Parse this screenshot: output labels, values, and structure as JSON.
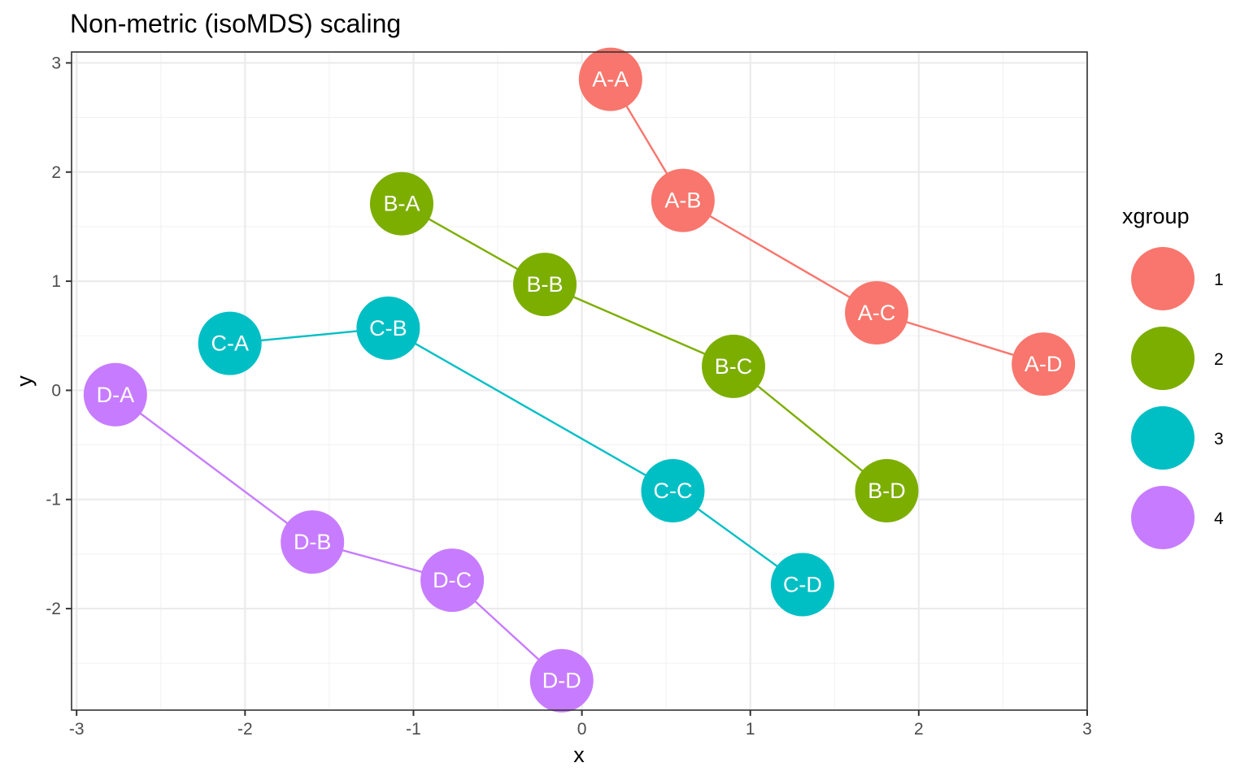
{
  "chart_data": {
    "type": "scatter",
    "title": "Non-metric (isoMDS) scaling",
    "xlabel": "x",
    "ylabel": "y",
    "xlim": [
      -3.03,
      3.0
    ],
    "ylim": [
      -2.93,
      3.1
    ],
    "x_ticks": [
      -3,
      -2,
      -1,
      0,
      1,
      2,
      3
    ],
    "y_ticks": [
      -2,
      -1,
      0,
      1,
      2,
      3
    ],
    "x_tick_labels": [
      "-3",
      "-2",
      "-1",
      "0",
      "1",
      "2",
      "3"
    ],
    "y_tick_labels": [
      "-2",
      "-1",
      "0",
      "1",
      "2",
      "3"
    ],
    "grid": true,
    "legend": {
      "title": "xgroup",
      "position": "right"
    },
    "series": [
      {
        "name": "1",
        "color": "#F8766D",
        "points": [
          {
            "label": "A-A",
            "x": 0.17,
            "y": 2.85
          },
          {
            "label": "A-B",
            "x": 0.6,
            "y": 1.74
          },
          {
            "label": "A-C",
            "x": 1.75,
            "y": 0.71
          },
          {
            "label": "A-D",
            "x": 2.74,
            "y": 0.24
          }
        ]
      },
      {
        "name": "2",
        "color": "#7CAE00",
        "points": [
          {
            "label": "B-A",
            "x": -1.07,
            "y": 1.71
          },
          {
            "label": "B-B",
            "x": -0.22,
            "y": 0.97
          },
          {
            "label": "B-C",
            "x": 0.9,
            "y": 0.22
          },
          {
            "label": "B-D",
            "x": 1.81,
            "y": -0.92
          }
        ]
      },
      {
        "name": "3",
        "color": "#00BFC4",
        "points": [
          {
            "label": "C-A",
            "x": -2.09,
            "y": 0.43
          },
          {
            "label": "C-B",
            "x": -1.15,
            "y": 0.57
          },
          {
            "label": "C-C",
            "x": 0.54,
            "y": -0.92
          },
          {
            "label": "C-D",
            "x": 1.31,
            "y": -1.78
          }
        ]
      },
      {
        "name": "4",
        "color": "#C77CFF",
        "points": [
          {
            "label": "D-A",
            "x": -2.77,
            "y": -0.04
          },
          {
            "label": "D-B",
            "x": -1.6,
            "y": -1.39
          },
          {
            "label": "D-C",
            "x": -0.77,
            "y": -1.74
          },
          {
            "label": "D-D",
            "x": -0.12,
            "y": -2.66
          }
        ]
      }
    ]
  }
}
